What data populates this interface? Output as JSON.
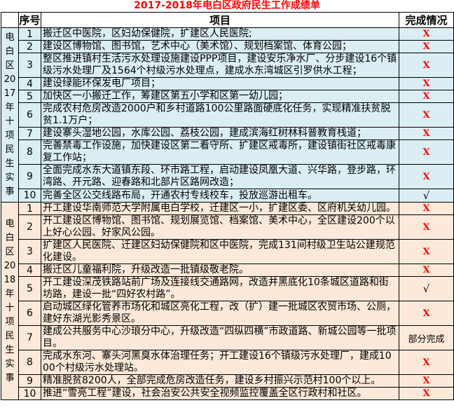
{
  "title": "2017-2018年电白区政府民生工作成绩单",
  "columns": {
    "index": "序号",
    "project": "项目",
    "status": "完成情况"
  },
  "colors": {
    "title_text": "#FF0000",
    "section_2017_bg": "#DAEEF3",
    "section_2018_bg": "#FDE9D9",
    "fail_mark": "#FF0000",
    "done_mark": "#000000",
    "border": "#000000"
  },
  "marks": {
    "fail": "X",
    "done": "√",
    "partial": "部分完成"
  },
  "sections": [
    {
      "label": "电\n白\n区\n20\n17\n年\n十\n项\n民\n生\n实\n事",
      "rows": [
        {
          "no": "1",
          "project": "搬迁区中医院，区妇幼保健院，扩建区人民医院;",
          "status": "X",
          "kind": "fail"
        },
        {
          "no": "2",
          "project": "建设区博物馆、图书馆，艺术中心（美术馆）、规划档案馆、体育公园；",
          "status": "X",
          "kind": "fail"
        },
        {
          "no": "3",
          "project": "整区推进镇村生活污水处理设施建设PPP项目，建设安乐净水厂、分步建设16个镇级污水处理厂及1564个村级污水处理点，建成水东湾城区引罗供水工程；",
          "status": "X",
          "kind": "fail"
        },
        {
          "no": "4",
          "project": "建设绿能环保发电厂项目；",
          "status": "X",
          "kind": "fail"
        },
        {
          "no": "5",
          "project": "加快区一小搬迁工作，筹建区第五小学和区第一幼儿园；",
          "status": "X",
          "kind": "fail"
        },
        {
          "no": "6",
          "project": "完成农村危房改造2000户和乡村道路100公里路面硬底化任务，实现精准扶贫脱贫1.1万户；",
          "status": "X",
          "kind": "fail"
        },
        {
          "no": "7",
          "project": "建设寨头湿地公园，水库公园、荔枝公园，建成滨海红树林科普教育栈道；",
          "status": "X",
          "kind": "fail"
        },
        {
          "no": "8",
          "project": "完善禁毒工作设施，加快建设区第二看守所、扩建区戒毒所，建设镇街社区戒毒康复工作站；",
          "status": "X",
          "kind": "fail"
        },
        {
          "no": "9",
          "project": "全面完成水东大道镇东段、环市路工程，启动建设凤凰大道、兴华路，登步路，环湾路、开元路、迎春路和北部片区路网改造；",
          "status": "X",
          "kind": "fail"
        },
        {
          "no": "10",
          "project": "完善全区公交线路布局，开通农村专线校车，投放巡游出租车。",
          "status": "√",
          "kind": "ok"
        }
      ]
    },
    {
      "label": "电\n白\n区\n20\n18\n年\n十\n项\n民\n生\n实\n事",
      "rows": [
        {
          "no": "1",
          "project": "开工建设华南师范大学附属电白学校，迁建区一小，扩建区委、区府机关幼儿园。",
          "status": "X",
          "kind": "fail"
        },
        {
          "no": "2",
          "project": "开工建设区博物馆、图书馆、规划展览馆、档案馆、美术中心，全区建设200个以上好心公园、好家风公园。",
          "status": "X",
          "kind": "fail"
        },
        {
          "no": "3",
          "project": "扩建区人民医院、迁建区妇幼保健院和区中医院，完成131间村级卫生站公建规范化建设。",
          "status": "X",
          "kind": "fail"
        },
        {
          "no": "4",
          "project": "搬迁区儿童福利院，升级改造一批镇级敬老院。",
          "status": "X",
          "kind": "fail"
        },
        {
          "no": "5",
          "project": "开工建设深茂铁路站前广场及连接线交通路网，改造并黑底化10条城区道路和街坊路，建设一批“四好农村路”。",
          "status": "√",
          "kind": "ok"
        },
        {
          "no": "6",
          "project": "启动城区绿化管养市场化和城区亮化工程，改（扩）建一批城区农贸市场、公厕，建好东湖光影秀景区。",
          "status": "X",
          "kind": "fail"
        },
        {
          "no": "7",
          "project": "建成公共服务中心沙琅分中心，升级改造“四纵四横”市政道路、新城公园等一批项目。",
          "status": "部分完成",
          "kind": "partial"
        },
        {
          "no": "8",
          "project": "完成水东河、寨头河黑臭水体治理任务；开工建设16个镇级污水处理厂，建成1000个村级污水处理站。",
          "status": "X",
          "kind": "fail"
        },
        {
          "no": "9",
          "project": "精准脱贫8200人，全部完成危房改造任务，建设乡村振兴示范村100个以上。",
          "status": "X",
          "kind": "fail"
        },
        {
          "no": "10",
          "project": "推进“雪亮工程”建设，社会治安公共安全视频监控覆盖全区行政村和社区。",
          "status": "X",
          "kind": "fail"
        }
      ]
    }
  ]
}
